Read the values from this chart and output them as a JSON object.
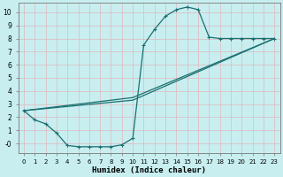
{
  "title": "",
  "xlabel": "Humidex (Indice chaleur)",
  "ylabel": "",
  "background_color": "#c8eef0",
  "grid_color": "#e8f8f8",
  "line_color": "#1a7070",
  "xlim": [
    -0.5,
    23.5
  ],
  "ylim": [
    -0.7,
    10.7
  ],
  "xticks": [
    0,
    1,
    2,
    3,
    4,
    5,
    6,
    7,
    8,
    9,
    10,
    11,
    12,
    13,
    14,
    15,
    16,
    17,
    18,
    19,
    20,
    21,
    22,
    23
  ],
  "yticks": [
    0,
    1,
    2,
    3,
    4,
    5,
    6,
    7,
    8,
    9,
    10
  ],
  "ytick_labels": [
    "-0",
    "1",
    "2",
    "3",
    "4",
    "5",
    "6",
    "7",
    "8",
    "9",
    "10"
  ],
  "curve1_x": [
    0,
    1,
    2,
    3,
    4,
    5,
    6,
    7,
    8,
    9,
    10,
    11,
    12,
    13,
    14,
    15,
    16,
    17,
    18,
    19,
    20,
    21,
    22,
    23
  ],
  "curve1_y": [
    2.5,
    1.8,
    1.5,
    0.8,
    -0.15,
    -0.25,
    -0.25,
    -0.25,
    -0.25,
    -0.1,
    0.4,
    7.5,
    8.7,
    9.7,
    10.2,
    10.4,
    10.2,
    8.1,
    8.0,
    8.0,
    8.0,
    8.0,
    8.0,
    8.0
  ],
  "curve2_x": [
    0,
    10,
    23
  ],
  "curve2_y": [
    2.5,
    3.3,
    8.0
  ],
  "curve3_x": [
    0,
    10,
    23
  ],
  "curve3_y": [
    2.5,
    3.5,
    8.0
  ],
  "marker_x": [
    0,
    1,
    2,
    3,
    4,
    5,
    6,
    7,
    8,
    9,
    10,
    11,
    12,
    13,
    14,
    15,
    16,
    17,
    18,
    19,
    20,
    21,
    22,
    23
  ],
  "marker_y": [
    2.5,
    1.8,
    1.5,
    0.8,
    -0.15,
    -0.25,
    -0.25,
    -0.25,
    -0.25,
    -0.1,
    0.4,
    7.5,
    8.7,
    9.7,
    10.2,
    10.4,
    10.2,
    8.1,
    8.0,
    8.0,
    8.0,
    8.0,
    8.0,
    8.0
  ]
}
